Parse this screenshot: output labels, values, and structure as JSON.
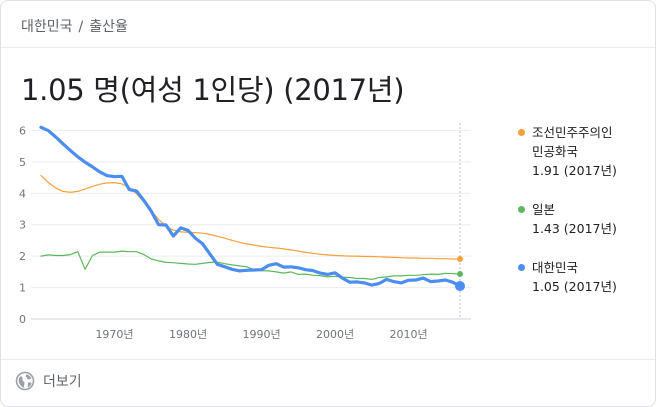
{
  "breadcrumb": {
    "country": "대한민국",
    "separator": "/",
    "topic": "출산율"
  },
  "headline": "1.05 명(여성 1인당) (2017년)",
  "footer": {
    "more_label": "더보기",
    "icon": "globe-icon"
  },
  "colors": {
    "north_korea": "#f4a13a",
    "japan": "#5cb85c",
    "south_korea": "#4c8df0"
  },
  "legend": [
    {
      "name": "조선민주주의인민공화국",
      "name_line1": "조선민주주의인",
      "name_line2": "민공화국",
      "value": "1.91 (2017년)"
    },
    {
      "name": "일본",
      "value": "1.43 (2017년)"
    },
    {
      "name": "대한민국",
      "value": "1.05 (2017년)"
    }
  ],
  "chart_data": {
    "type": "line",
    "title": "",
    "xlabel": "",
    "ylabel": "",
    "xlim": [
      1960,
      2017
    ],
    "ylim": [
      0,
      6.3
    ],
    "y_ticks": [
      "0",
      "1",
      "2",
      "3",
      "4",
      "5",
      "6"
    ],
    "x_ticks": [
      "1970년",
      "1980년",
      "1990년",
      "2000년",
      "2010년"
    ],
    "x_tick_values": [
      1970,
      1980,
      1990,
      2000,
      2010
    ],
    "y_tick_values": [
      0,
      1,
      2,
      3,
      4,
      5,
      6
    ],
    "x": [
      1960,
      1961,
      1962,
      1963,
      1964,
      1965,
      1966,
      1967,
      1968,
      1969,
      1970,
      1971,
      1972,
      1973,
      1974,
      1975,
      1976,
      1977,
      1978,
      1979,
      1980,
      1981,
      1982,
      1983,
      1984,
      1985,
      1986,
      1987,
      1988,
      1989,
      1990,
      1991,
      1992,
      1993,
      1994,
      1995,
      1996,
      1997,
      1998,
      1999,
      2000,
      2001,
      2002,
      2003,
      2004,
      2005,
      2006,
      2007,
      2008,
      2009,
      2010,
      2011,
      2012,
      2013,
      2014,
      2015,
      2016,
      2017
    ],
    "series": [
      {
        "name": "조선민주주의인민공화국",
        "values": [
          4.57,
          4.34,
          4.17,
          4.06,
          4.03,
          4.06,
          4.14,
          4.22,
          4.29,
          4.33,
          4.34,
          4.3,
          4.18,
          3.98,
          3.72,
          3.45,
          3.17,
          2.95,
          2.83,
          2.77,
          2.76,
          2.75,
          2.73,
          2.69,
          2.63,
          2.57,
          2.5,
          2.44,
          2.39,
          2.35,
          2.31,
          2.28,
          2.26,
          2.23,
          2.2,
          2.16,
          2.12,
          2.09,
          2.06,
          2.04,
          2.02,
          2.01,
          2.0,
          2.0,
          1.99,
          1.99,
          1.98,
          1.97,
          1.96,
          1.95,
          1.94,
          1.94,
          1.93,
          1.93,
          1.92,
          1.92,
          1.91,
          1.91
        ]
      },
      {
        "name": "일본",
        "values": [
          2.0,
          2.04,
          2.02,
          2.02,
          2.05,
          2.14,
          1.58,
          2.02,
          2.13,
          2.13,
          2.13,
          2.16,
          2.14,
          2.14,
          2.05,
          1.91,
          1.85,
          1.8,
          1.79,
          1.77,
          1.75,
          1.74,
          1.77,
          1.8,
          1.81,
          1.76,
          1.72,
          1.69,
          1.66,
          1.57,
          1.54,
          1.53,
          1.5,
          1.46,
          1.5,
          1.42,
          1.43,
          1.39,
          1.38,
          1.34,
          1.36,
          1.33,
          1.32,
          1.29,
          1.29,
          1.26,
          1.32,
          1.34,
          1.37,
          1.37,
          1.39,
          1.39,
          1.41,
          1.43,
          1.42,
          1.45,
          1.44,
          1.43
        ]
      },
      {
        "name": "대한민국",
        "values": [
          6.1,
          5.99,
          5.79,
          5.57,
          5.36,
          5.16,
          4.99,
          4.84,
          4.68,
          4.56,
          4.53,
          4.54,
          4.12,
          4.07,
          3.77,
          3.43,
          3.0,
          2.99,
          2.64,
          2.9,
          2.82,
          2.57,
          2.39,
          2.06,
          1.74,
          1.66,
          1.58,
          1.53,
          1.55,
          1.56,
          1.57,
          1.71,
          1.76,
          1.65,
          1.66,
          1.63,
          1.57,
          1.54,
          1.46,
          1.42,
          1.47,
          1.3,
          1.17,
          1.18,
          1.15,
          1.08,
          1.13,
          1.26,
          1.19,
          1.15,
          1.23,
          1.24,
          1.3,
          1.19,
          1.21,
          1.24,
          1.17,
          1.05
        ]
      }
    ],
    "grid": true,
    "legend_position": "right"
  }
}
